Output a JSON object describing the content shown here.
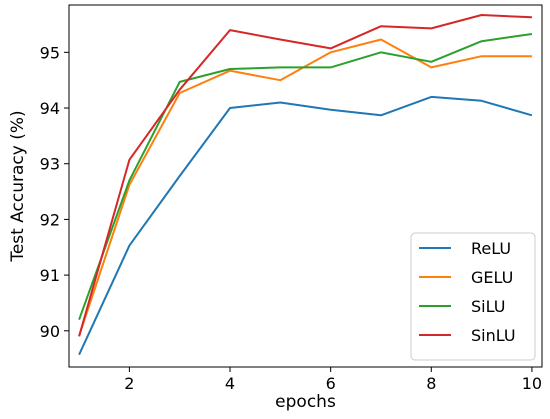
{
  "chart_data": {
    "type": "line",
    "xlabel": "epochs",
    "ylabel": "Test Accuracy (%)",
    "xlim": [
      0.8,
      10.2
    ],
    "ylim": [
      89.35,
      95.85
    ],
    "x": [
      1,
      2,
      3,
      4,
      5,
      6,
      7,
      8,
      9,
      10
    ],
    "x_ticks": [
      2,
      4,
      6,
      8,
      10
    ],
    "y_ticks": [
      90,
      91,
      92,
      93,
      94,
      95
    ],
    "grid": false,
    "legend_position": "bottom-right",
    "series": [
      {
        "name": "ReLU",
        "color": "#1f77b4",
        "values": [
          89.57,
          91.53,
          92.78,
          94.0,
          94.1,
          93.97,
          93.87,
          94.2,
          94.13,
          93.87
        ]
      },
      {
        "name": "GELU",
        "color": "#ff7f0e",
        "values": [
          89.91,
          92.62,
          94.27,
          94.67,
          94.5,
          95.0,
          95.23,
          94.73,
          94.93,
          94.93
        ]
      },
      {
        "name": "SiLU",
        "color": "#2ca02c",
        "values": [
          90.2,
          92.7,
          94.47,
          94.7,
          94.73,
          94.73,
          95.0,
          94.83,
          95.2,
          95.33
        ]
      },
      {
        "name": "SinLU",
        "color": "#d62728",
        "values": [
          89.9,
          93.07,
          94.33,
          95.4,
          95.23,
          95.07,
          95.47,
          95.43,
          95.67,
          95.63
        ]
      }
    ]
  }
}
